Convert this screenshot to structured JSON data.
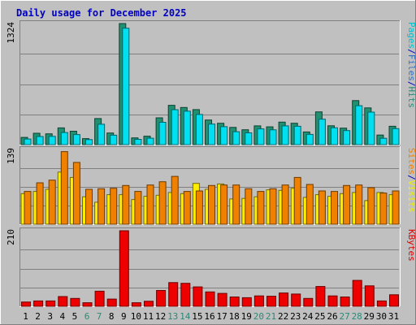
{
  "chart_data": {
    "type": "bar",
    "title": "Daily usage for December 2025",
    "categories": [
      "1",
      "2",
      "3",
      "4",
      "5",
      "6",
      "7",
      "8",
      "9",
      "10",
      "11",
      "12",
      "13",
      "14",
      "15",
      "16",
      "17",
      "18",
      "19",
      "20",
      "21",
      "22",
      "23",
      "24",
      "25",
      "26",
      "27",
      "28",
      "29",
      "30",
      "31"
    ],
    "weekend_days": [
      "6",
      "7",
      "13",
      "14",
      "20",
      "21",
      "27",
      "28"
    ],
    "panels": [
      {
        "id": "hits",
        "y_max_label": "1324",
        "ylim": [
          0,
          1324
        ],
        "right_labels": [
          {
            "text": "Pages",
            "color": "#00c0d0"
          },
          {
            "text": "/",
            "color": "#0000c0"
          },
          {
            "text": "Files",
            "color": "#3070c0"
          },
          {
            "text": "/",
            "color": "#0000c0"
          },
          {
            "text": "Hits",
            "color": "#2a8a78"
          }
        ],
        "series": [
          {
            "name": "Hits",
            "color": "#209070",
            "values": [
              79,
              124,
              118,
              183,
              147,
              66,
              285,
              127,
              1324,
              74,
              92,
              293,
              430,
              406,
              383,
              269,
              234,
              188,
              163,
              205,
              195,
              246,
              234,
              139,
              358,
              206,
              180,
              482,
              402,
              105,
              201
            ]
          },
          {
            "name": "Files",
            "color": "#00e0f0",
            "values": [
              61,
              89,
              91,
              132,
              110,
              55,
              223,
              103,
              1273,
              58,
              70,
              244,
              382,
              366,
              330,
              225,
              196,
              141,
              129,
              172,
              162,
              205,
              201,
              112,
              278,
              184,
              154,
              426,
              355,
              69,
              175
            ]
          }
        ]
      },
      {
        "id": "visits",
        "y_max_label": "139",
        "ylim": [
          0,
          139
        ],
        "right_labels": [
          {
            "text": "Sites",
            "color": "#f08000"
          },
          {
            "text": "/",
            "color": "#0000c0"
          },
          {
            "text": "Visits",
            "color": "#f0f000"
          }
        ],
        "series": [
          {
            "name": "Visits",
            "color": "#ffee00",
            "values": [
              57,
              61,
              65,
              97,
              87,
              51,
              41,
              55,
              55,
              46,
              52,
              54,
              59,
              57,
              76,
              65,
              75,
              47,
              48,
              51,
              64,
              63,
              67,
              50,
              55,
              52,
              57,
              59,
              44,
              59,
              55
            ]
          },
          {
            "name": "Sites",
            "color": "#f08000",
            "values": [
              61,
              77,
              82,
              135,
              115,
              65,
              66,
              67,
              72,
              61,
              73,
              79,
              89,
              61,
              62,
              72,
              73,
              73,
              66,
              61,
              66,
              73,
              87,
              74,
              62,
              61,
              72,
              73,
              68,
              58,
              62
            ]
          }
        ]
      },
      {
        "id": "kbytes",
        "y_max_label": "210",
        "ylim": [
          0,
          210
        ],
        "right_labels": [
          {
            "text": "KBytes",
            "color": "#e00000"
          }
        ],
        "series": [
          {
            "name": "KBytes",
            "color": "#ee0000",
            "values": [
              12,
              15,
              15,
              27,
              22,
              10,
              42,
              20,
              210,
              10,
              14,
              44,
              66,
              64,
              54,
              40,
              36,
              26,
              24,
              29,
              28,
              37,
              34,
              22,
              55,
              29,
              26,
              72,
              57,
              15,
              32
            ]
          }
        ]
      }
    ],
    "colors": {
      "background": "#c0c0c0",
      "title": "#0000c0",
      "weekend_label": "#2a8a78",
      "weekday_label": "#000000",
      "gridline": "#808080"
    }
  }
}
